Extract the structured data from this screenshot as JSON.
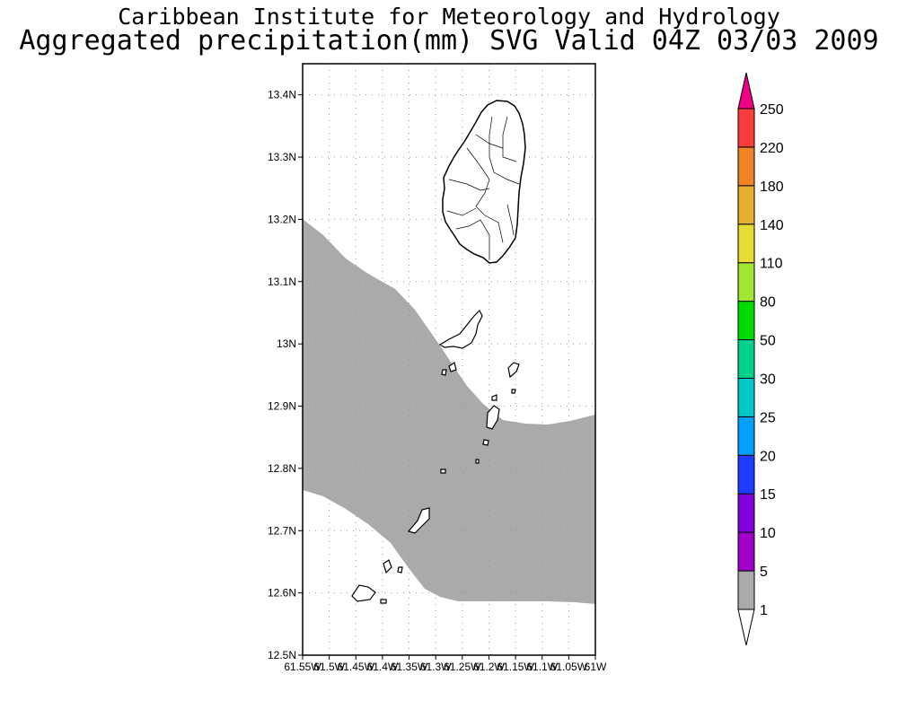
{
  "title": {
    "line1": "Caribbean Institute for Meteorology and Hydrology",
    "line2": "Aggregated precipitation(mm) SVG Valid 04Z 03/03 2009"
  },
  "map": {
    "lat_labels": [
      "13.4N",
      "13.3N",
      "13.2N",
      "13.1N",
      "13N",
      "12.9N",
      "12.8N",
      "12.7N",
      "12.6N",
      "12.5N"
    ],
    "lon_labels": [
      "61.55W",
      "61.5W",
      "61.45W",
      "61.4W",
      "61.35W",
      "61.3W",
      "61.25W",
      "61.2W",
      "61.15W",
      "61.1W",
      "61.05W",
      "61W"
    ],
    "lat_range": [
      12.5,
      13.45
    ],
    "lon_range": [
      -61.55,
      -61.0
    ],
    "grid": true,
    "rain_area_color": "#aaaaaa"
  },
  "colorbar": {
    "levels": [
      "1",
      "5",
      "10",
      "15",
      "20",
      "25",
      "30",
      "50",
      "80",
      "110",
      "140",
      "180",
      "220",
      "250"
    ],
    "colors": [
      "#aaaaaa",
      "#a000c8",
      "#8200dc",
      "#1e3cff",
      "#00a0ff",
      "#00c8c8",
      "#00d28c",
      "#00dc00",
      "#a0e632",
      "#e6dc32",
      "#e6af2d",
      "#f08228",
      "#fa3c3c",
      "#f00082"
    ]
  }
}
